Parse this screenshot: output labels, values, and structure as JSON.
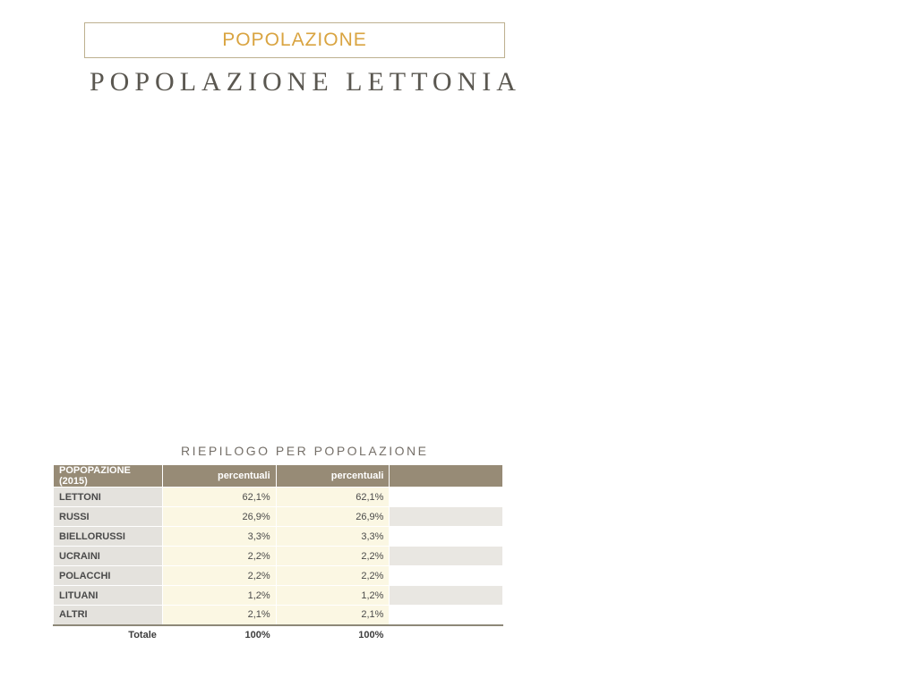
{
  "badge": {
    "label": "POPOLAZIONE"
  },
  "title": "POPOLAZIONE LETTONIA",
  "summary_heading": "RIEPILOGO PER POPOLAZIONE",
  "table": {
    "columns": {
      "label": "POPOPAZIONE (2015)",
      "p1": "percentuali",
      "p2": "percentuali",
      "p3": ""
    },
    "rows": [
      {
        "label": "LETTONI",
        "p1": "62,1%",
        "p2": "62,1%",
        "p3": ""
      },
      {
        "label": "RUSSI",
        "p1": "26,9%",
        "p2": "26,9%",
        "p3": ""
      },
      {
        "label": "BIELLORUSSI",
        "p1": "3,3%",
        "p2": "3,3%",
        "p3": ""
      },
      {
        "label": "UCRAINI",
        "p1": "2,2%",
        "p2": "2,2%",
        "p3": ""
      },
      {
        "label": "POLACCHI",
        "p1": "2,2%",
        "p2": "2,2%",
        "p3": ""
      },
      {
        "label": "LITUANI",
        "p1": "1,2%",
        "p2": "1,2%",
        "p3": ""
      },
      {
        "label": "ALTRI",
        "p1": "2,1%",
        "p2": "2,1%",
        "p3": ""
      }
    ],
    "total": {
      "label": "Totale",
      "p1": "100%",
      "p2": "100%",
      "p3": ""
    }
  },
  "colors": {
    "badge_border": "#bdb08f",
    "badge_text": "#d9a441",
    "title_text": "#5a5750",
    "summary_text": "#767069",
    "header_bg": "#978b76",
    "header_text": "#ffffff",
    "label_bg": "#e4e2dd",
    "value_bg": "#fbf7e3",
    "stripe_bg": "#e9e7e2",
    "total_border": "#8d8878"
  }
}
